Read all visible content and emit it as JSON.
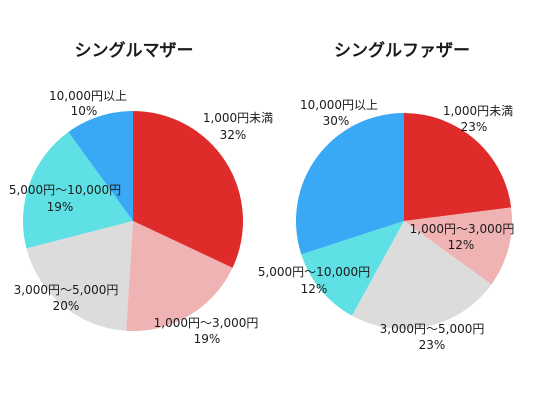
{
  "chart_data": [
    {
      "type": "pie",
      "title": "シングルマザー",
      "series": [
        {
          "label": "1,000円未満",
          "percent_text": "32%",
          "value": 32,
          "color": "#e02b2b"
        },
        {
          "label": "1,000円〜3,000円",
          "percent_text": "19%",
          "value": 19,
          "color": "#f0b3b3"
        },
        {
          "label": "3,000円〜5,000円",
          "percent_text": "20%",
          "value": 20,
          "color": "#dcdcdc"
        },
        {
          "label": "5,000円〜10,000円",
          "percent_text": "19%",
          "value": 19,
          "color": "#5ee0e4"
        },
        {
          "label": "10,000円以上",
          "percent_text": "10%",
          "value": 10,
          "color": "#3aa9f5"
        }
      ]
    },
    {
      "type": "pie",
      "title": "シングルファザー",
      "series": [
        {
          "label": "1,000円未満",
          "percent_text": "23%",
          "value": 23,
          "color": "#e02b2b"
        },
        {
          "label": "1,000円〜3,000円",
          "percent_text": "12%",
          "value": 12,
          "color": "#f0b3b3"
        },
        {
          "label": "3,000円〜5,000円",
          "percent_text": "23%",
          "value": 23,
          "color": "#dcdcdc"
        },
        {
          "label": "5,000円〜10,000円",
          "percent_text": "12%",
          "value": 12,
          "color": "#5ee0e4"
        },
        {
          "label": "10,000円以上",
          "percent_text": "30%",
          "value": 30,
          "color": "#3aa9f5"
        }
      ]
    }
  ]
}
